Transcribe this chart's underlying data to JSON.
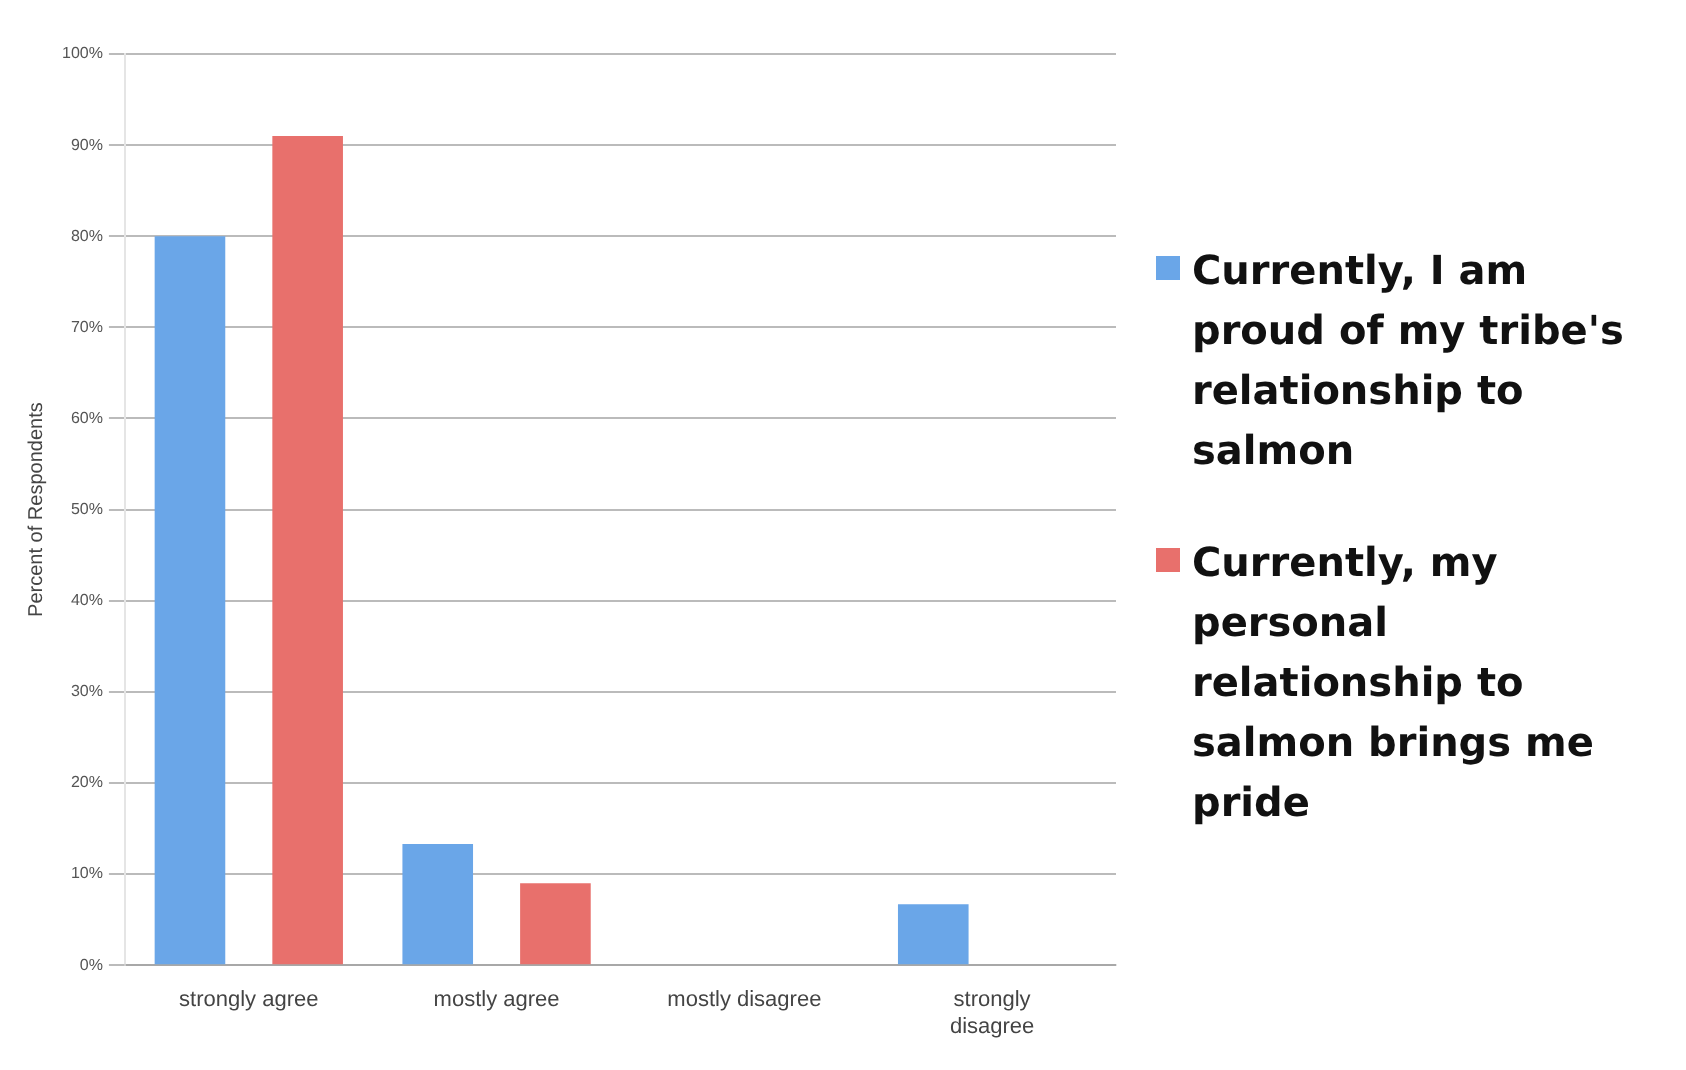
{
  "chart_data": {
    "type": "bar",
    "ylabel": "Percent of Respondents",
    "categories": [
      "strongly agree",
      "mostly agree",
      "mostly disagree",
      "strongly disagree"
    ],
    "series": [
      {
        "name": "Currently, I am proud of my tribe's relationship to salmon",
        "color": "#6aa6e8",
        "values": [
          80,
          13.3,
          0,
          6.7
        ]
      },
      {
        "name": "Currently, my personal relationship to salmon brings me pride",
        "color": "#e8706c",
        "values": [
          91,
          9,
          0,
          0
        ]
      }
    ],
    "ylim": [
      0,
      100
    ],
    "yticks": [
      {
        "value": 0,
        "label": "0%"
      },
      {
        "value": 10,
        "label": "10%"
      },
      {
        "value": 20,
        "label": "20%"
      },
      {
        "value": 30,
        "label": "30%"
      },
      {
        "value": 40,
        "label": "40%"
      },
      {
        "value": 50,
        "label": "50%"
      },
      {
        "value": 60,
        "label": "60%"
      },
      {
        "value": 70,
        "label": "70%"
      },
      {
        "value": 80,
        "label": "80%"
      },
      {
        "value": 90,
        "label": "90%"
      },
      {
        "value": 100,
        "label": "100%"
      }
    ],
    "grid": "y",
    "legend": "right"
  }
}
